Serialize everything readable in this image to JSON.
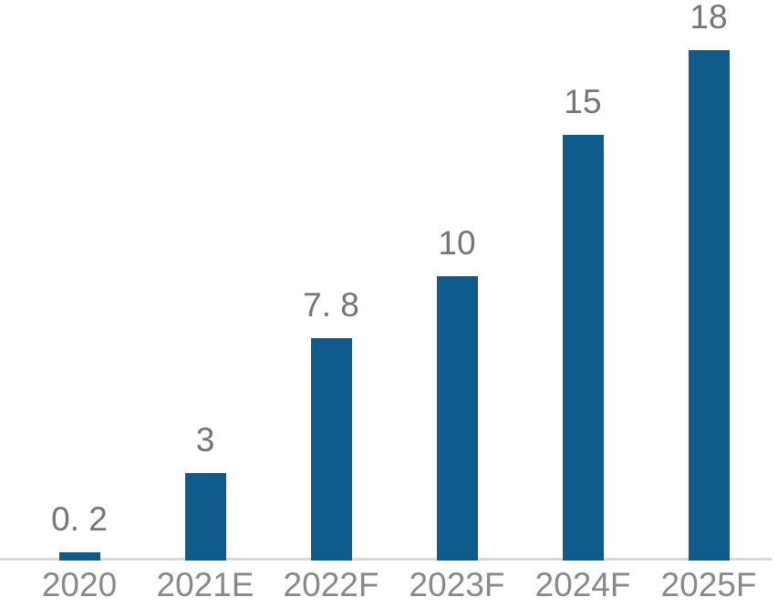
{
  "chart_data": {
    "type": "bar",
    "categories": [
      "2020",
      "2021E",
      "2022F",
      "2023F",
      "2024F",
      "2025F"
    ],
    "values": [
      0.2,
      3,
      7.8,
      10,
      15,
      18
    ],
    "value_labels": [
      "0. 2",
      "3",
      "7. 8",
      "10",
      "15",
      "18"
    ],
    "title": "",
    "xlabel": "",
    "ylabel": "",
    "ylim": [
      0,
      18
    ],
    "grid": false,
    "legend": null,
    "layout_hints": {
      "value_labels_shown": "above each bar",
      "y_axis_shown": false,
      "baseline_shown": true
    },
    "colors": {
      "bar": "#0f5c8c",
      "value_label": "#757575",
      "axis_label": "#898989",
      "axis_line": "#d9d9d9",
      "background": "#ffffff"
    }
  }
}
